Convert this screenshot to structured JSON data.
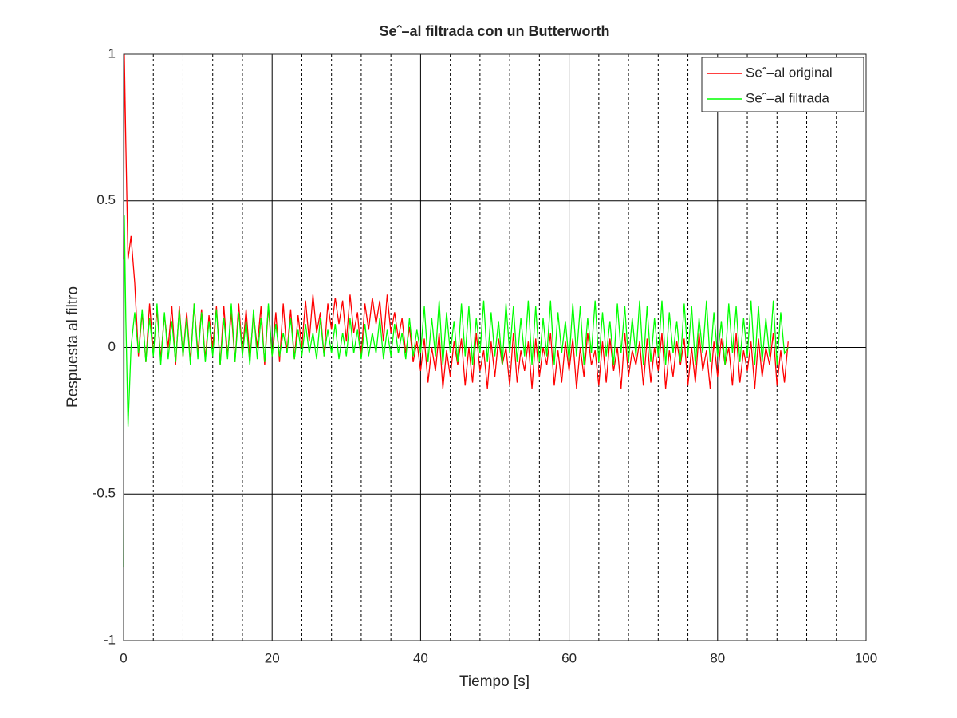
{
  "chart_data": {
    "type": "line",
    "title": "Seˆ–al filtrada con un Butterworth",
    "xlabel": "Tiempo [s]",
    "ylabel": "Respuesta al filtro",
    "xlim": [
      0,
      100
    ],
    "ylim": [
      -1,
      1
    ],
    "xticks": [
      0,
      20,
      40,
      60,
      80,
      100
    ],
    "yticks": [
      -1,
      -0.5,
      0,
      0.5,
      1
    ],
    "xminorticks": [
      4,
      8,
      12,
      16,
      24,
      28,
      32,
      36,
      44,
      48,
      52,
      56,
      64,
      68,
      72,
      76,
      84,
      88,
      92,
      96
    ],
    "grid": true,
    "legend": "northeast",
    "x": [
      0,
      0.1,
      0.3,
      0.6,
      1,
      1.5,
      2,
      2.5,
      3,
      3.5,
      4,
      4.5,
      5,
      5.5,
      6,
      6.5,
      7,
      7.5,
      8,
      8.5,
      9,
      9.5,
      10,
      10.5,
      11,
      11.5,
      12,
      12.5,
      13,
      13.5,
      14,
      14.5,
      15,
      15.5,
      16,
      16.5,
      17,
      17.5,
      18,
      18.5,
      19,
      19.5,
      20,
      20.5,
      21,
      21.5,
      22,
      22.5,
      23,
      23.5,
      24,
      24.5,
      25,
      25.5,
      26,
      26.5,
      27,
      27.5,
      28,
      28.5,
      29,
      29.5,
      30,
      30.5,
      31,
      31.5,
      32,
      32.5,
      33,
      33.5,
      34,
      34.5,
      35,
      35.5,
      36,
      36.5,
      37,
      37.5,
      38,
      38.5,
      39,
      39.5,
      40,
      40.5,
      41,
      41.5,
      42,
      42.5,
      43,
      43.5,
      44,
      44.5,
      45,
      45.5,
      46,
      46.5,
      47,
      47.5,
      48,
      48.5,
      49,
      49.5,
      50,
      50.5,
      51,
      51.5,
      52,
      52.5,
      53,
      53.5,
      54,
      54.5,
      55,
      55.5,
      56,
      56.5,
      57,
      57.5,
      58,
      58.5,
      59,
      59.5,
      60,
      60.5,
      61,
      61.5,
      62,
      62.5,
      63,
      63.5,
      64,
      64.5,
      65,
      65.5,
      66,
      66.5,
      67,
      67.5,
      68,
      68.5,
      69,
      69.5,
      70,
      70.5,
      71,
      71.5,
      72,
      72.5,
      73,
      73.5,
      74,
      74.5,
      75,
      75.5,
      76,
      76.5,
      77,
      77.5,
      78,
      78.5,
      79,
      79.5,
      80,
      80.5,
      81,
      81.5,
      82,
      82.5,
      83,
      83.5,
      84,
      84.5,
      85,
      85.5,
      86,
      86.5,
      87,
      87.5,
      88,
      88.5,
      89,
      89.5
    ],
    "series": [
      {
        "name": "Seˆ–al original",
        "color": "#ff0000",
        "values": [
          0.3,
          1,
          0.7,
          0.3,
          0.38,
          0.22,
          -0.03,
          0.12,
          -0.05,
          0.15,
          -0.02,
          0.13,
          -0.04,
          0.11,
          0.0,
          0.14,
          -0.06,
          0.14,
          -0.03,
          0.12,
          -0.05,
          0.15,
          -0.02,
          0.13,
          -0.04,
          0.11,
          0.0,
          0.14,
          -0.06,
          0.14,
          -0.03,
          0.12,
          -0.05,
          0.15,
          -0.02,
          0.13,
          -0.04,
          0.11,
          0.0,
          0.14,
          -0.06,
          0.14,
          -0.03,
          0.12,
          -0.05,
          0.15,
          -0.02,
          0.13,
          -0.04,
          0.11,
          0.0,
          0.16,
          0.02,
          0.18,
          0.05,
          0.12,
          -0.03,
          0.15,
          0.06,
          0.17,
          0.08,
          0.16,
          0.02,
          0.18,
          0.05,
          0.12,
          -0.03,
          0.15,
          0.06,
          0.17,
          0.08,
          0.16,
          0.02,
          0.18,
          0.05,
          0.12,
          0.03,
          0.1,
          -0.02,
          0.07,
          -0.05,
          0.02,
          -0.08,
          0.03,
          -0.12,
          0.0,
          -0.08,
          0.05,
          -0.14,
          -0.01,
          -0.1,
          0.02,
          -0.06,
          0.03,
          -0.13,
          0.0,
          -0.12,
          0.05,
          -0.08,
          -0.01,
          -0.14,
          0.02,
          -0.1,
          0.03,
          -0.06,
          0.0,
          -0.13,
          0.05,
          -0.12,
          -0.01,
          -0.08,
          0.02,
          -0.14,
          0.03,
          -0.1,
          0.0,
          -0.06,
          0.05,
          -0.13,
          -0.01,
          -0.12,
          0.02,
          -0.08,
          0.03,
          -0.14,
          0.0,
          -0.1,
          0.05,
          -0.06,
          -0.01,
          -0.13,
          0.02,
          -0.12,
          0.03,
          -0.08,
          0.0,
          -0.14,
          0.05,
          -0.1,
          -0.01,
          -0.06,
          0.02,
          -0.13,
          0.03,
          -0.12,
          0.0,
          -0.08,
          0.05,
          -0.14,
          -0.01,
          -0.1,
          0.02,
          -0.06,
          0.03,
          -0.13,
          0.0,
          -0.12,
          0.05,
          -0.08,
          -0.01,
          -0.14,
          0.02,
          -0.1,
          0.03,
          -0.06,
          0.0,
          -0.13,
          0.05,
          -0.12,
          -0.01,
          -0.08,
          0.02,
          -0.14,
          0.03,
          -0.1,
          0.0,
          -0.06,
          0.05,
          -0.13,
          -0.01,
          -0.12,
          0.02
        ]
      },
      {
        "name": "Seˆ–al filtrada",
        "color": "#00ff00",
        "values": [
          -0.75,
          0.45,
          0.1,
          -0.27,
          0.0,
          0.12,
          -0.02,
          0.13,
          -0.05,
          0.1,
          -0.03,
          0.15,
          -0.06,
          0.12,
          -0.04,
          0.09,
          -0.05,
          0.13,
          -0.03,
          0.1,
          -0.06,
          0.15,
          -0.04,
          0.12,
          -0.05,
          0.09,
          -0.03,
          0.13,
          -0.06,
          0.1,
          -0.04,
          0.15,
          -0.05,
          0.12,
          -0.03,
          0.09,
          -0.06,
          0.13,
          -0.04,
          0.1,
          -0.05,
          0.15,
          -0.03,
          0.08,
          -0.03,
          0.05,
          -0.02,
          0.1,
          -0.04,
          0.06,
          -0.03,
          0.08,
          -0.02,
          0.05,
          -0.04,
          0.1,
          -0.03,
          0.06,
          -0.02,
          0.08,
          -0.04,
          0.05,
          -0.03,
          0.1,
          -0.02,
          0.06,
          -0.04,
          0.08,
          -0.03,
          0.05,
          -0.02,
          0.1,
          -0.04,
          0.06,
          -0.03,
          0.08,
          -0.02,
          0.05,
          -0.04,
          0.1,
          -0.03,
          0.06,
          -0.02,
          0.14,
          -0.05,
          0.1,
          -0.03,
          0.16,
          -0.06,
          0.12,
          -0.02,
          0.09,
          -0.05,
          0.15,
          -0.03,
          0.14,
          -0.06,
          0.1,
          -0.02,
          0.16,
          -0.05,
          0.12,
          -0.03,
          0.09,
          -0.06,
          0.15,
          -0.02,
          0.14,
          -0.05,
          0.1,
          -0.03,
          0.16,
          -0.06,
          0.14,
          -0.05,
          0.1,
          -0.03,
          0.16,
          -0.06,
          0.12,
          -0.02,
          0.09,
          -0.05,
          0.15,
          -0.03,
          0.14,
          -0.06,
          0.1,
          -0.02,
          0.16,
          -0.05,
          0.12,
          -0.03,
          0.09,
          -0.06,
          0.15,
          -0.02,
          0.14,
          -0.05,
          0.1,
          -0.03,
          0.16,
          -0.06,
          0.14,
          -0.05,
          0.1,
          -0.03,
          0.16,
          -0.06,
          0.12,
          -0.02,
          0.09,
          -0.05,
          0.15,
          -0.03,
          0.14,
          -0.06,
          0.1,
          -0.02,
          0.16,
          -0.05,
          0.12,
          -0.03,
          0.09,
          -0.06,
          0.15,
          -0.02,
          0.14,
          -0.05,
          0.1,
          -0.03,
          0.16,
          -0.06,
          0.14,
          -0.05,
          0.1,
          -0.03,
          0.16,
          -0.06,
          0.12,
          -0.02,
          0.0
        ]
      }
    ]
  }
}
